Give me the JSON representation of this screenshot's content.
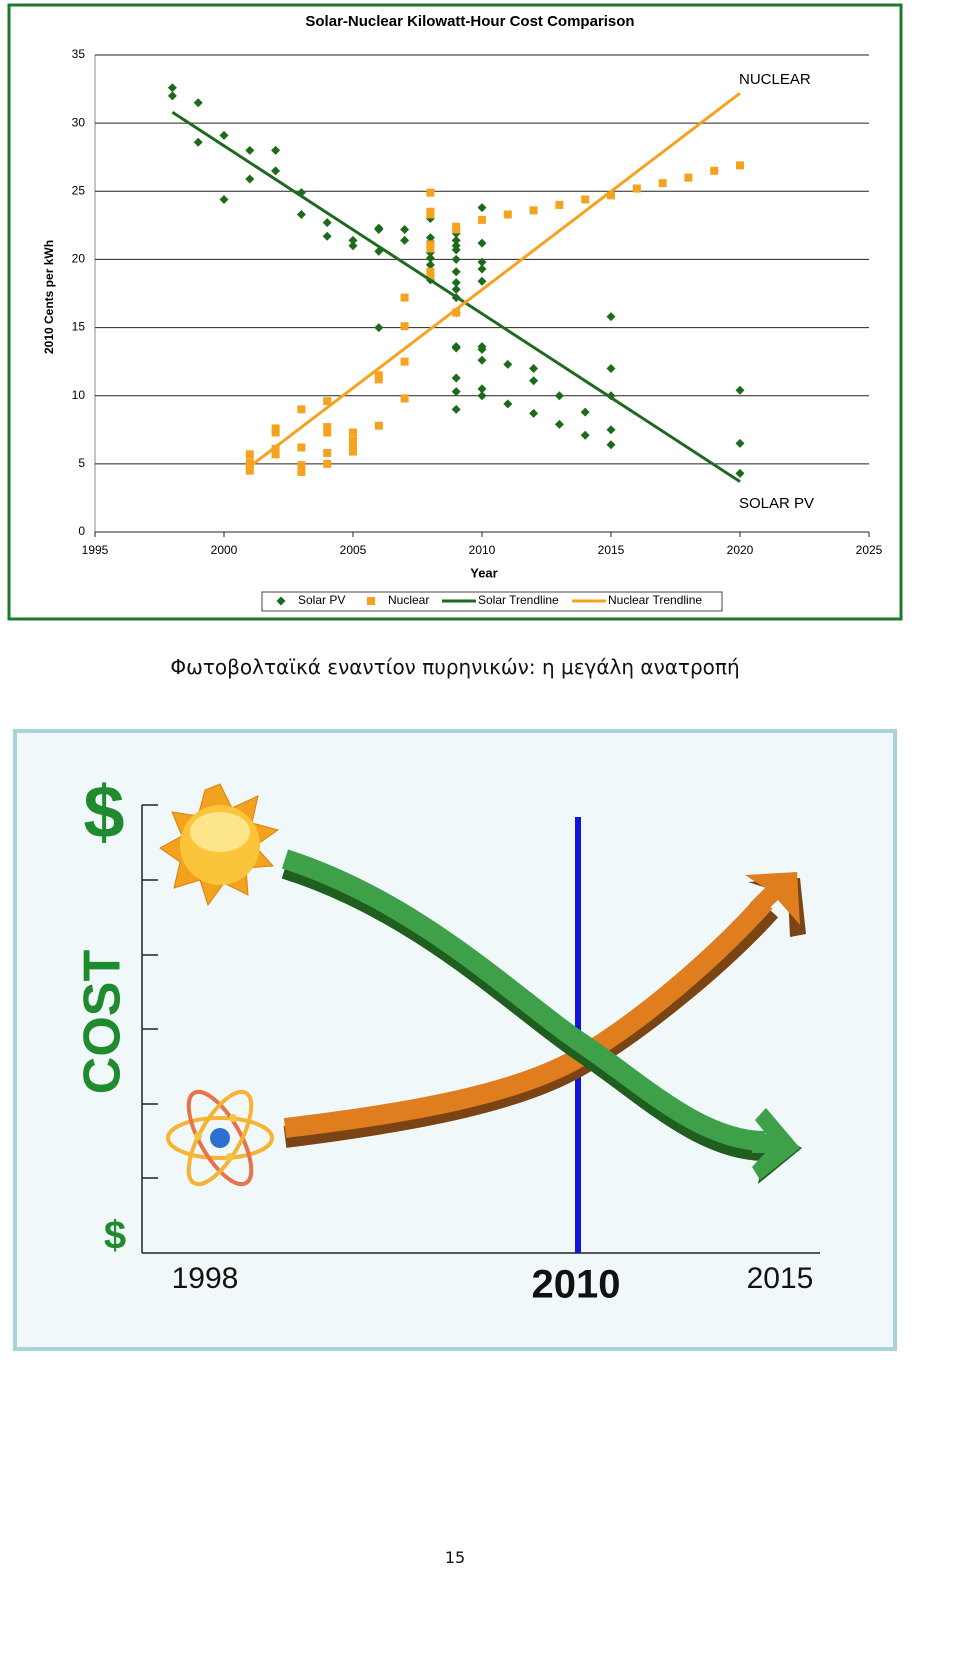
{
  "chart_data": {
    "type": "scatter",
    "title": "Solar-Nuclear Kilowatt-Hour Cost Comparison",
    "x_label": "Year",
    "y_label": "2010 Cents per kWh",
    "xlim": [
      1995,
      2025
    ],
    "xticks": [
      1995,
      2000,
      2005,
      2010,
      2015,
      2020,
      2025
    ],
    "ylim": [
      0,
      35
    ],
    "yticks": [
      0,
      5,
      10,
      15,
      20,
      25,
      30,
      35
    ],
    "grid": true,
    "legend": "bottom",
    "annotations": [
      "NUCLEAR",
      "SOLAR PV"
    ],
    "series": [
      {
        "name": "Solar PV",
        "color": "#1b6b1b",
        "marker": "diamond",
        "x": [
          1998,
          1998,
          1999,
          1999,
          2000,
          2000,
          2001,
          2001,
          2002,
          2002,
          2003,
          2003,
          2004,
          2004,
          2005,
          2005,
          2006,
          2006,
          2006,
          2006,
          2007,
          2007,
          2008,
          2008,
          2008,
          2008,
          2008,
          2008,
          2008,
          2009,
          2009,
          2009,
          2009,
          2009,
          2009,
          2009,
          2009,
          2009,
          2009,
          2009,
          2009,
          2009,
          2009,
          2009,
          2010,
          2010,
          2010,
          2010,
          2010,
          2010,
          2010,
          2010,
          2010,
          2010,
          2011,
          2011,
          2012,
          2012,
          2012,
          2013,
          2013,
          2014,
          2014,
          2015,
          2015,
          2015,
          2015,
          2015,
          2020,
          2020,
          2020
        ],
        "values": [
          32.6,
          32.0,
          31.5,
          28.6,
          29.1,
          24.4,
          28.0,
          25.9,
          28.0,
          26.5,
          24.9,
          23.3,
          22.7,
          21.7,
          21.4,
          21.0,
          22.3,
          22.2,
          20.6,
          15.0,
          22.2,
          21.4,
          23.0,
          21.6,
          21.3,
          20.5,
          20.1,
          19.6,
          18.5,
          21.9,
          21.4,
          21.0,
          20.7,
          20.0,
          19.1,
          18.3,
          17.8,
          17.2,
          16.1,
          13.6,
          13.5,
          11.3,
          10.3,
          9.0,
          23.8,
          21.2,
          19.8,
          19.3,
          18.4,
          13.6,
          13.4,
          12.6,
          10.5,
          10.0,
          12.3,
          9.4,
          12.0,
          11.1,
          8.7,
          10.0,
          7.9,
          8.8,
          7.1,
          15.8,
          12.0,
          10.0,
          7.5,
          6.4,
          10.4,
          6.5,
          4.3
        ]
      },
      {
        "name": "Nuclear",
        "color": "#f5a31f",
        "marker": "square",
        "x": [
          2001,
          2001,
          2001,
          2001,
          2002,
          2002,
          2002,
          2002,
          2003,
          2003,
          2003,
          2003,
          2004,
          2004,
          2004,
          2004,
          2004,
          2005,
          2005,
          2005,
          2005,
          2006,
          2006,
          2006,
          2007,
          2007,
          2007,
          2007,
          2008,
          2008,
          2008,
          2008,
          2008,
          2008,
          2008,
          2009,
          2009,
          2009,
          2010,
          2011,
          2012,
          2013,
          2014,
          2015,
          2016,
          2017,
          2018,
          2019,
          2020
        ],
        "values": [
          5.7,
          5.1,
          4.8,
          4.5,
          7.6,
          7.3,
          6.1,
          5.7,
          9.0,
          6.2,
          4.9,
          4.4,
          9.6,
          7.7,
          7.3,
          5.8,
          5.0,
          7.3,
          6.7,
          6.3,
          5.9,
          11.5,
          11.2,
          7.8,
          17.2,
          15.1,
          12.5,
          9.8,
          24.9,
          23.5,
          23.3,
          21.1,
          20.8,
          19.1,
          18.8,
          22.4,
          22.2,
          16.1,
          22.9,
          23.3,
          23.6,
          24.0,
          24.4,
          24.7,
          25.2,
          25.6,
          26.0,
          26.5,
          26.9
        ]
      },
      {
        "name": "Solar Trendline",
        "color": "#1f6a1f",
        "marker": "line",
        "x": [
          1998,
          2020
        ],
        "values": [
          30.8,
          3.7
        ]
      },
      {
        "name": "Nuclear Trendline",
        "color": "#f5a31f",
        "marker": "line",
        "x": [
          2001,
          2020
        ],
        "values": [
          4.8,
          32.2
        ]
      }
    ]
  },
  "caption": "Φωτοβολταϊκά εναντίον πυρηνικών: η μεγάλη ανατροπή",
  "illustration": {
    "top_label": "$",
    "axis_label": "COST",
    "bottom_label": "$",
    "years": [
      "1998",
      "2010",
      "2015"
    ]
  },
  "page_number": "15"
}
